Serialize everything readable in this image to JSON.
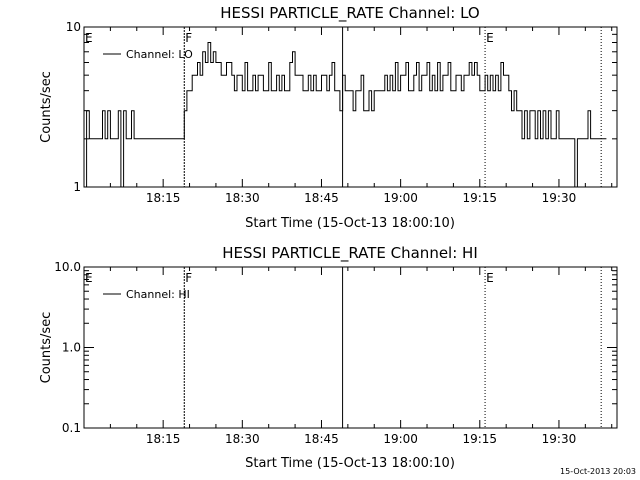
{
  "footer": "15-Oct-2013 20:03",
  "chart_data": [
    {
      "type": "line",
      "title": "HESSI PARTICLE_RATE Channel: LO",
      "xlabel": "Start Time (15-Oct-13 18:00:10)",
      "ylabel": "Counts/sec",
      "yscale": "log",
      "ylim": [
        1,
        10
      ],
      "xlim_minutes": [
        0,
        101
      ],
      "x_ticks": [
        {
          "min": 15,
          "label": "18:15"
        },
        {
          "min": 30,
          "label": "18:30"
        },
        {
          "min": 45,
          "label": "18:45"
        },
        {
          "min": 60,
          "label": "19:00"
        },
        {
          "min": 75,
          "label": "19:15"
        },
        {
          "min": 90,
          "label": "19:30"
        }
      ],
      "y_ticks": [
        {
          "value": 1,
          "label": "1"
        },
        {
          "value": 10,
          "label": "10"
        }
      ],
      "legend": {
        "entries": [
          "Channel: LO"
        ],
        "placement": "top-left"
      },
      "annotations": [
        {
          "label": "E",
          "min": 0,
          "line": "none"
        },
        {
          "label": "F",
          "min": 19,
          "line": "dashed"
        },
        {
          "label": "",
          "min": 49,
          "line": "solid"
        },
        {
          "label": "E",
          "min": 76,
          "line": "dotted"
        },
        {
          "label": "",
          "min": 98,
          "line": "dotted"
        }
      ],
      "series": [
        {
          "name": "Channel: LO",
          "start_min": 0,
          "step_min": 0.5,
          "values": [
            1,
            3,
            2,
            2,
            2,
            2,
            2,
            3,
            2,
            3,
            2,
            2,
            2,
            3,
            1,
            3,
            2,
            2,
            3,
            2,
            2,
            2,
            2,
            2,
            2,
            2,
            2,
            2,
            2,
            2,
            2,
            2,
            2,
            2,
            2,
            2,
            2,
            2,
            3,
            4,
            4,
            5,
            5,
            6,
            5,
            7,
            6,
            8,
            6,
            7,
            6,
            6,
            5,
            5,
            6,
            6,
            5,
            4,
            5,
            5,
            4,
            6,
            4,
            4,
            5,
            4,
            5,
            5,
            4,
            4,
            6,
            4,
            4,
            5,
            4,
            5,
            4,
            4,
            6,
            7,
            5,
            5,
            5,
            4,
            4,
            5,
            4,
            5,
            4,
            4,
            5,
            5,
            4,
            5,
            6,
            4,
            4,
            3,
            5,
            4,
            4,
            4,
            3,
            4,
            4,
            5,
            3,
            3,
            4,
            3,
            4,
            4,
            4,
            4,
            5,
            4,
            5,
            4,
            6,
            4,
            5,
            5,
            6,
            4,
            4,
            5,
            6,
            4,
            5,
            5,
            6,
            4,
            5,
            4,
            6,
            4,
            5,
            5,
            6,
            4,
            4,
            5,
            5,
            4,
            5,
            5,
            6,
            5,
            6,
            5,
            4,
            4,
            5,
            4,
            5,
            4,
            5,
            4,
            6,
            5,
            5,
            4,
            3,
            4,
            3,
            3,
            2,
            3,
            2,
            3,
            3,
            2,
            3,
            2,
            3,
            2,
            3,
            2,
            2,
            3,
            2,
            2,
            2,
            2,
            2,
            2,
            1,
            2,
            2,
            2,
            2,
            3,
            2,
            2,
            2,
            2,
            2,
            2
          ]
        }
      ]
    },
    {
      "type": "line",
      "title": "HESSI PARTICLE_RATE Channel: HI",
      "xlabel": "Start Time (15-Oct-13 18:00:10)",
      "ylabel": "Counts/sec",
      "yscale": "log",
      "ylim": [
        0.1,
        10
      ],
      "xlim_minutes": [
        0,
        101
      ],
      "x_ticks": [
        {
          "min": 15,
          "label": "18:15"
        },
        {
          "min": 30,
          "label": "18:30"
        },
        {
          "min": 45,
          "label": "18:45"
        },
        {
          "min": 60,
          "label": "19:00"
        },
        {
          "min": 75,
          "label": "19:15"
        },
        {
          "min": 90,
          "label": "19:30"
        }
      ],
      "y_ticks": [
        {
          "value": 0.1,
          "label": "0.1"
        },
        {
          "value": 1,
          "label": "1.0"
        },
        {
          "value": 10,
          "label": "10.0"
        }
      ],
      "legend": {
        "entries": [
          "Channel: HI"
        ],
        "placement": "top-left"
      },
      "annotations": [
        {
          "label": "E",
          "min": 0,
          "line": "none"
        },
        {
          "label": "F",
          "min": 19,
          "line": "dashed"
        },
        {
          "label": "",
          "min": 49,
          "line": "solid"
        },
        {
          "label": "E",
          "min": 76,
          "line": "dotted"
        },
        {
          "label": "",
          "min": 98,
          "line": "dotted"
        }
      ],
      "series": [
        {
          "name": "Channel: HI",
          "start_min": 0,
          "step_min": 0.5,
          "values": []
        }
      ]
    }
  ]
}
